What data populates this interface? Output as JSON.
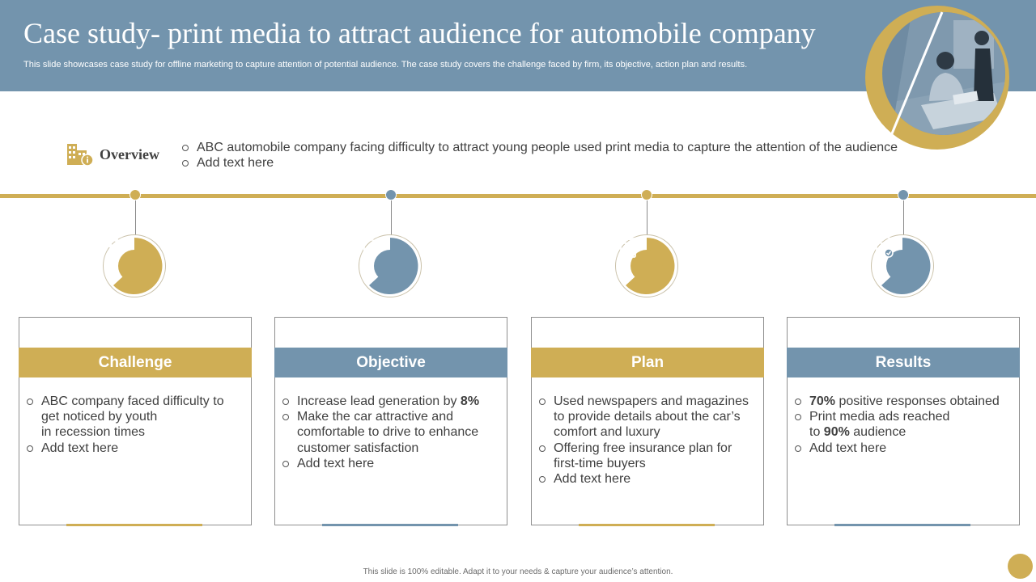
{
  "header": {
    "title": "Case study- print media to attract audience for automobile company",
    "subtitle": "This slide showcases case study for offline marketing to capture attention of potential audience. The case study covers the challenge faced by firm, its objective, action plan and results."
  },
  "overview": {
    "label": "Overview",
    "icon": "building-info-icon",
    "items": [
      "ABC automobile company facing difficulty to attract young people used print media to capture the attention  of the audience",
      "Add text here"
    ]
  },
  "colors": {
    "gold": "#cfae55",
    "blue": "#7394ad"
  },
  "cards": [
    {
      "heading": "Challenge",
      "icon": "team-presentation-icon",
      "accent": "gold",
      "items": [
        "ABC company faced difficulty to get noticed by youth in recession times",
        "Add text here"
      ]
    },
    {
      "heading": "Objective",
      "icon": "target-chart-icon",
      "accent": "blue",
      "items": [
        "Increase lead generation by 8%",
        "Make the car attractive and comfortable to drive to enhance customer satisfaction",
        "Add text here"
      ]
    },
    {
      "heading": "Plan",
      "icon": "clipboard-plan-icon",
      "accent": "gold",
      "items": [
        "Used newspapers and magazines to provide details about the car’s comfort and luxury",
        "Offering free insurance plan for first-time buyers",
        "Add text here"
      ]
    },
    {
      "heading": "Results",
      "icon": "report-checklist-icon",
      "accent": "blue",
      "items": [
        "70% positive responses obtained",
        "Print media ads reached to 90% audience",
        "Add text here"
      ]
    }
  ],
  "footer": {
    "text": "This slide is 100% editable.  Adapt it to your needs & capture your audience’s attention."
  }
}
